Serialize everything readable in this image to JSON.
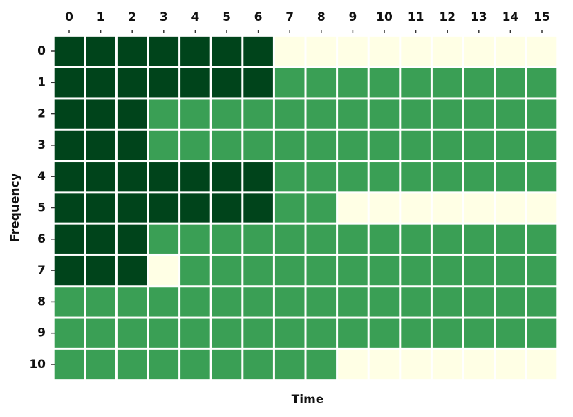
{
  "chart_data": {
    "type": "heatmap",
    "x_label": "Time",
    "y_label": "Frequency",
    "categories": [
      "0",
      "1",
      "2",
      "3",
      "4",
      "5",
      "6",
      "7",
      "8",
      "9",
      "10",
      "11",
      "12",
      "13",
      "14",
      "15"
    ],
    "rows": [
      "0",
      "1",
      "2",
      "3",
      "4",
      "5",
      "6",
      "7",
      "8",
      "9",
      "10"
    ],
    "values": [
      [
        2,
        2,
        2,
        2,
        2,
        2,
        2,
        0,
        0,
        0,
        0,
        0,
        0,
        0,
        0,
        0
      ],
      [
        2,
        2,
        2,
        2,
        2,
        2,
        2,
        1,
        1,
        1,
        1,
        1,
        1,
        1,
        1,
        1
      ],
      [
        2,
        2,
        2,
        1,
        1,
        1,
        1,
        1,
        1,
        1,
        1,
        1,
        1,
        1,
        1,
        1
      ],
      [
        2,
        2,
        2,
        1,
        1,
        1,
        1,
        1,
        1,
        1,
        1,
        1,
        1,
        1,
        1,
        1
      ],
      [
        2,
        2,
        2,
        2,
        2,
        2,
        2,
        1,
        1,
        1,
        1,
        1,
        1,
        1,
        1,
        1
      ],
      [
        2,
        2,
        2,
        2,
        2,
        2,
        2,
        1,
        1,
        0,
        0,
        0,
        0,
        0,
        0,
        0
      ],
      [
        2,
        2,
        2,
        1,
        1,
        1,
        1,
        1,
        1,
        1,
        1,
        1,
        1,
        1,
        1,
        1
      ],
      [
        2,
        2,
        2,
        0,
        1,
        1,
        1,
        1,
        1,
        1,
        1,
        1,
        1,
        1,
        1,
        1
      ],
      [
        1,
        1,
        1,
        1,
        1,
        1,
        1,
        1,
        1,
        1,
        1,
        1,
        1,
        1,
        1,
        1
      ],
      [
        1,
        1,
        1,
        1,
        1,
        1,
        1,
        1,
        1,
        1,
        1,
        1,
        1,
        1,
        1,
        1
      ],
      [
        1,
        1,
        1,
        1,
        1,
        1,
        1,
        1,
        1,
        0,
        0,
        0,
        0,
        0,
        0,
        0
      ]
    ],
    "colorscale": [
      "#ffffe5",
      "#3a9f55",
      "#00441b"
    ],
    "x_axis_position": "top"
  }
}
